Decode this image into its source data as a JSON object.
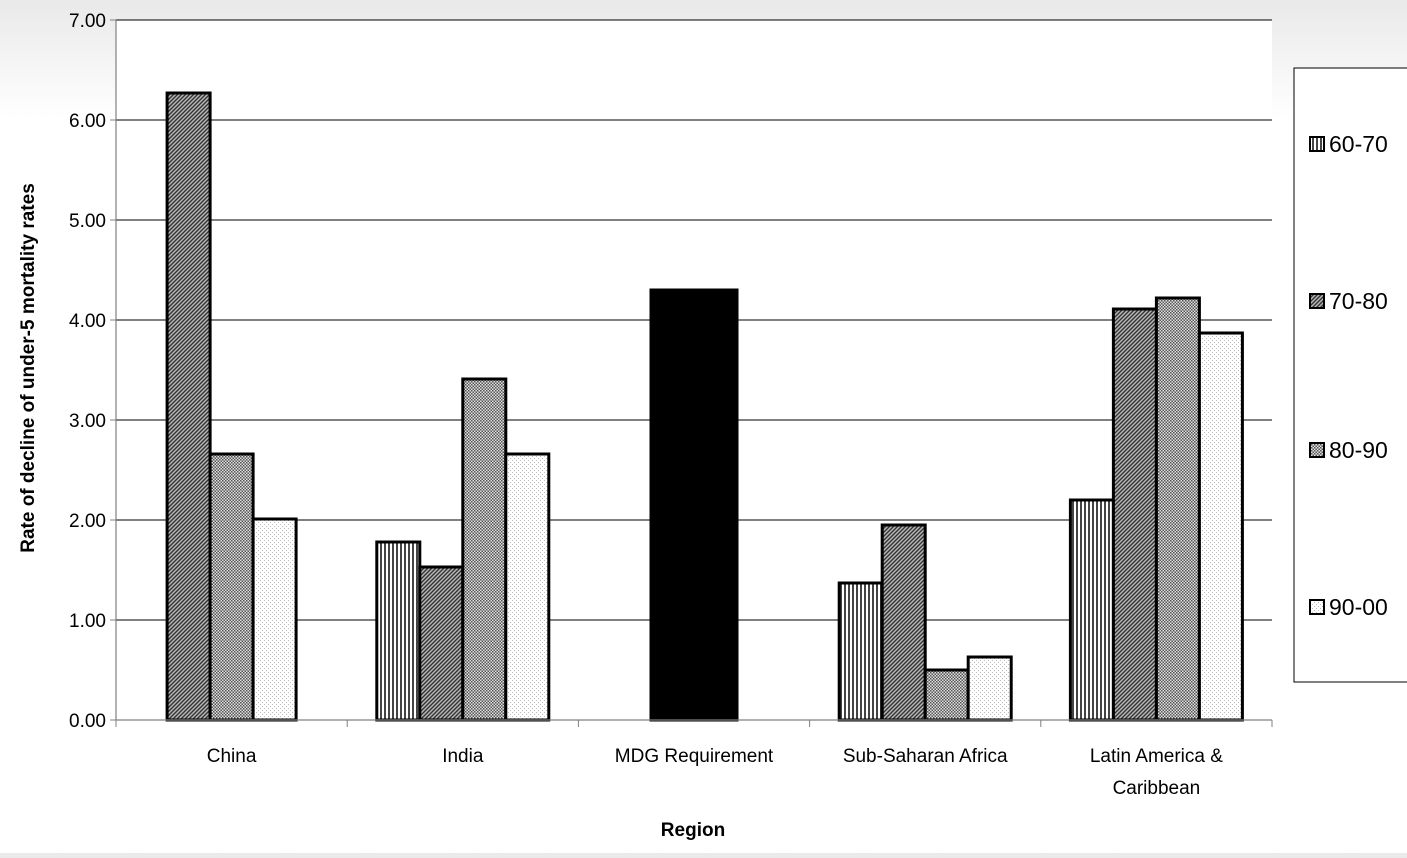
{
  "chart_data": {
    "type": "bar",
    "xlabel": "Region",
    "ylabel": "Rate of decline of under-5 mortality rates",
    "ylim": [
      0,
      7
    ],
    "yticks": [
      "0.00",
      "1.00",
      "2.00",
      "3.00",
      "4.00",
      "5.00",
      "6.00",
      "7.00"
    ],
    "grid": true,
    "legend_position": "right",
    "categories": [
      [
        "China"
      ],
      [
        "India"
      ],
      [
        "MDG Requirement"
      ],
      [
        "Sub-Saharan Africa"
      ],
      [
        "Latin America &",
        "Caribbean"
      ]
    ],
    "series": [
      {
        "name": "60-70",
        "pattern": "vertical-stripes",
        "values": [
          null,
          1.78,
          4.3,
          1.37,
          2.2
        ]
      },
      {
        "name": "70-80",
        "pattern": "diagonal-stripes",
        "values": [
          6.27,
          1.53,
          4.3,
          1.95,
          4.11
        ]
      },
      {
        "name": "80-90",
        "pattern": "dense-dots",
        "values": [
          2.66,
          3.41,
          null,
          0.5,
          4.22
        ]
      },
      {
        "name": "90-00",
        "pattern": "light-dots",
        "values": [
          2.01,
          2.66,
          null,
          0.63,
          3.87
        ]
      }
    ],
    "special_fill": {
      "MDG Requirement": "#000000"
    },
    "colors": {
      "axis": "#808080",
      "grid": "#000000",
      "bar_stroke": "#000000"
    }
  }
}
